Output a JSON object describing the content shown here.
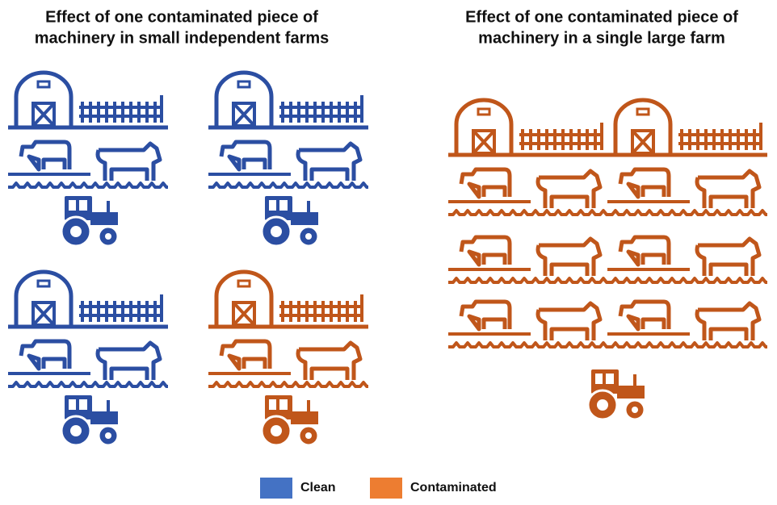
{
  "panels": [
    {
      "title_lines": [
        "Effect of one contaminated piece of",
        "machinery in small independent farms"
      ]
    },
    {
      "title_lines": [
        "Effect of one contaminated piece of",
        "machinery in a single large farm"
      ]
    }
  ],
  "legend": [
    {
      "label": "Clean",
      "color": "#4472c4"
    },
    {
      "label": "Contaminated",
      "color": "#ed7d31"
    }
  ]
}
